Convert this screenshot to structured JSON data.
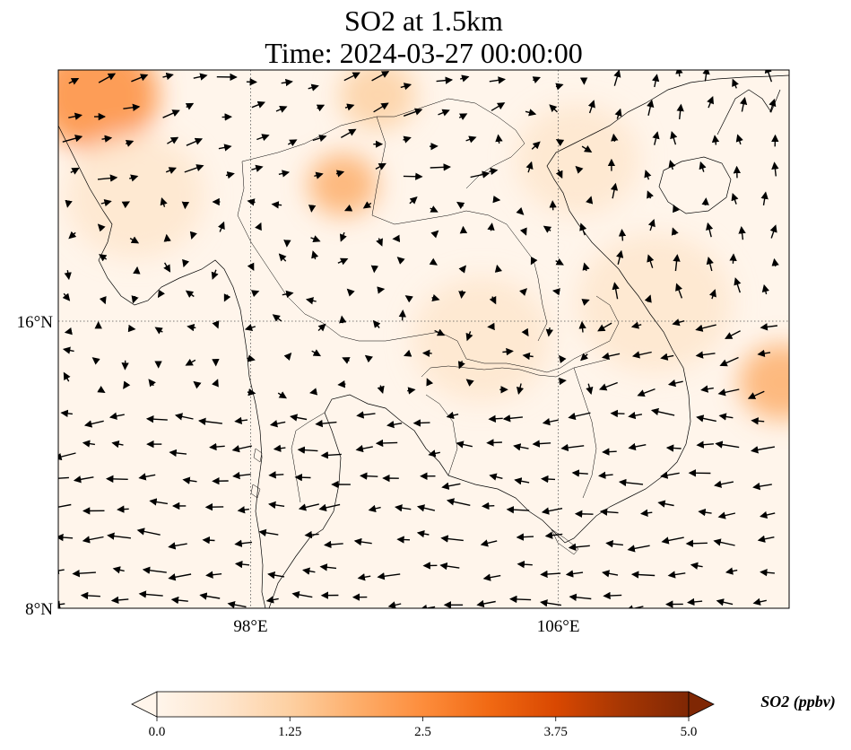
{
  "title": {
    "line1": "SO2 at 1.5km",
    "line2": "Time: 2024-03-27 00:00:00"
  },
  "map": {
    "lon_range": [
      93,
      112
    ],
    "lat_range": [
      8,
      23
    ],
    "lat_ticks": [
      {
        "value": 16,
        "label": "16°N"
      },
      {
        "value": 8,
        "label": "8°N"
      }
    ],
    "lon_ticks": [
      {
        "value": 98,
        "label": "98°E"
      },
      {
        "value": 106,
        "label": "106°E"
      }
    ],
    "gridlines": "dotted",
    "land_color": "#fff5eb",
    "hotspots": [
      {
        "lon": 94.0,
        "lat": 22.3,
        "value": 2.2,
        "radius_deg": 1.6
      },
      {
        "lon": 100.4,
        "lat": 19.8,
        "value": 1.6,
        "radius_deg": 0.9
      },
      {
        "lon": 101.3,
        "lat": 22.3,
        "value": 1.2,
        "radius_deg": 1.0
      },
      {
        "lon": 111.8,
        "lat": 14.3,
        "value": 2.0,
        "radius_deg": 1.1
      },
      {
        "lon": 108.5,
        "lat": 16.5,
        "value": 0.9,
        "radius_deg": 2.0
      },
      {
        "lon": 95.0,
        "lat": 19.5,
        "value": 0.9,
        "radius_deg": 1.8
      },
      {
        "lon": 106.5,
        "lat": 20.5,
        "value": 0.7,
        "radius_deg": 1.6
      },
      {
        "lon": 104.0,
        "lat": 15.5,
        "value": 0.5,
        "radius_deg": 1.8
      }
    ]
  },
  "colorbar": {
    "min": 0.0,
    "max": 5.0,
    "ticks": [
      "0.0",
      "1.25",
      "2.5",
      "3.75",
      "5.0"
    ],
    "label": "SO2 (ppbv)",
    "extend": "both",
    "colormap": [
      "#fff5eb",
      "#fee6ce",
      "#fdd0a2",
      "#fdae6b",
      "#fd8d3c",
      "#f16913",
      "#d94801",
      "#a63603",
      "#7f2704"
    ]
  }
}
